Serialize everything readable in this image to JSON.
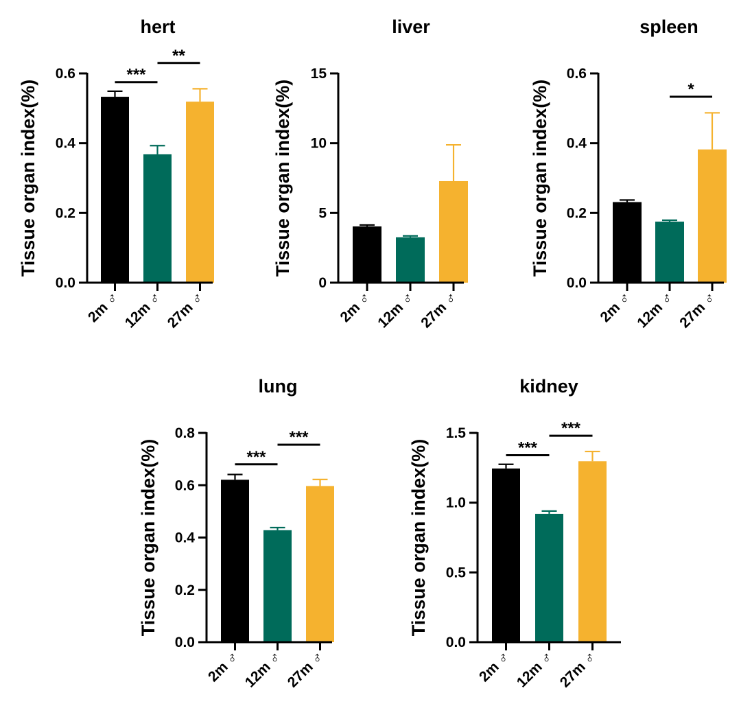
{
  "chart_data": [
    {
      "type": "bar",
      "title": "hert",
      "ylabel": "Tissue organ index(%)",
      "xlabel": "",
      "categories": [
        "2m ♂",
        "12m ♂",
        "27m ♂"
      ],
      "values": [
        0.533,
        0.368,
        0.519
      ],
      "errors": [
        0.016,
        0.025,
        0.037
      ],
      "colors": [
        "#000000",
        "#006b5a",
        "#f5b22f"
      ],
      "ylim": [
        0,
        0.6
      ],
      "yticks": [
        "0.0",
        "0.2",
        "0.4",
        "0.6"
      ],
      "significance": [
        {
          "from": 0,
          "to": 1,
          "label": "***",
          "y": 0.575
        },
        {
          "from": 1,
          "to": 2,
          "label": "**",
          "y": 0.63
        }
      ]
    },
    {
      "type": "bar",
      "title": "liver",
      "ylabel": "Tissue organ index(%)",
      "xlabel": "",
      "categories": [
        "2m ♂",
        "12m ♂",
        "27m ♂"
      ],
      "values": [
        4.03,
        3.25,
        7.28
      ],
      "errors": [
        0.1,
        0.1,
        2.6
      ],
      "colors": [
        "#000000",
        "#006b5a",
        "#f5b22f"
      ],
      "ylim": [
        0,
        15
      ],
      "yticks": [
        "0",
        "5",
        "10",
        "15"
      ],
      "significance": []
    },
    {
      "type": "bar",
      "title": "spleen",
      "ylabel": "Tissue organ index(%)",
      "xlabel": "",
      "categories": [
        "2m ♂",
        "12m ♂",
        "27m ♂"
      ],
      "values": [
        0.231,
        0.175,
        0.382
      ],
      "errors": [
        0.006,
        0.004,
        0.105
      ],
      "colors": [
        "#000000",
        "#006b5a",
        "#f5b22f"
      ],
      "ylim": [
        0,
        0.6
      ],
      "yticks": [
        "0.0",
        "0.2",
        "0.4",
        "0.6"
      ],
      "significance": [
        {
          "from": 1,
          "to": 2,
          "label": "*",
          "y": 0.533
        }
      ]
    },
    {
      "type": "bar",
      "title": "lung",
      "ylabel": "Tissue organ index(%)",
      "xlabel": "",
      "categories": [
        "2m ♂",
        "12m ♂",
        "27m ♂"
      ],
      "values": [
        0.621,
        0.428,
        0.597
      ],
      "errors": [
        0.02,
        0.01,
        0.025
      ],
      "colors": [
        "#000000",
        "#006b5a",
        "#f5b22f"
      ],
      "ylim": [
        0,
        0.8
      ],
      "yticks": [
        "0.0",
        "0.2",
        "0.4",
        "0.6",
        "0.8"
      ],
      "significance": [
        {
          "from": 0,
          "to": 1,
          "label": "***",
          "y": 0.68
        },
        {
          "from": 1,
          "to": 2,
          "label": "***",
          "y": 0.755
        }
      ]
    },
    {
      "type": "bar",
      "title": "kidney",
      "ylabel": "Tissue organ index(%)",
      "xlabel": "",
      "categories": [
        "2m ♂",
        "12m ♂",
        "27m ♂"
      ],
      "values": [
        1.245,
        0.92,
        1.297
      ],
      "errors": [
        0.03,
        0.02,
        0.07
      ],
      "colors": [
        "#000000",
        "#006b5a",
        "#f5b22f"
      ],
      "ylim": [
        0,
        1.5
      ],
      "yticks": [
        "0.0",
        "0.5",
        "1.0",
        "1.5"
      ],
      "significance": [
        {
          "from": 0,
          "to": 1,
          "label": "***",
          "y": 1.34
        },
        {
          "from": 1,
          "to": 2,
          "label": "***",
          "y": 1.48
        }
      ]
    }
  ]
}
